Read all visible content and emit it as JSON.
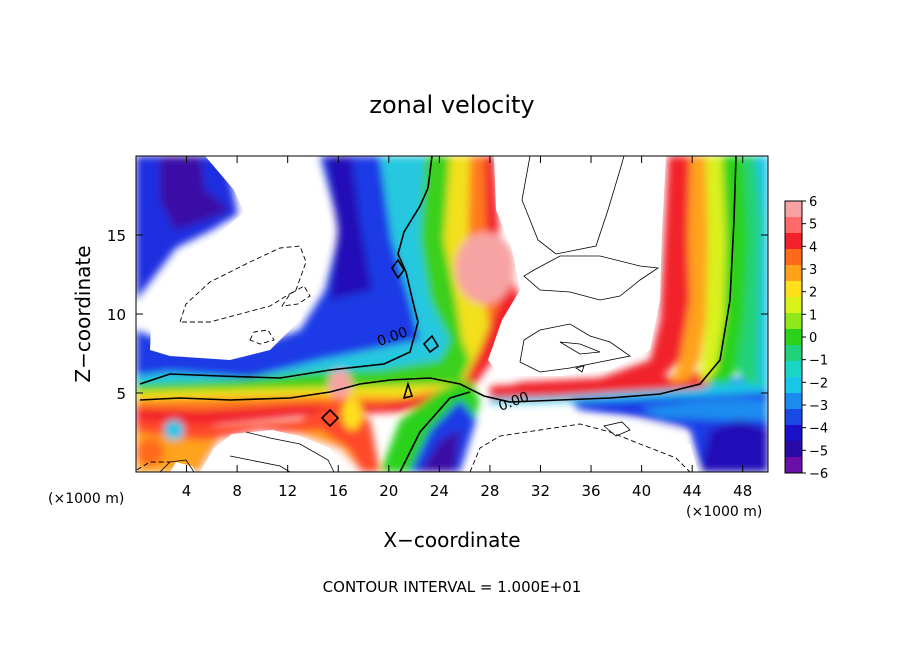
{
  "chart_data": {
    "type": "heatmap",
    "title": "zonal velocity",
    "xlabel": "X−coordinate",
    "ylabel": "Z−coordinate",
    "x_unit_left": "(×1000 m)",
    "x_unit_right": "(×1000 m)",
    "xlim": [
      0,
      50
    ],
    "ylim": [
      0,
      20
    ],
    "x_ticks": [
      4,
      8,
      12,
      16,
      20,
      24,
      28,
      32,
      36,
      40,
      44,
      48
    ],
    "y_ticks": [
      5,
      10,
      15
    ],
    "colorbar": {
      "range": [
        -6,
        6
      ],
      "ticks": [
        "6",
        "5",
        "4",
        "3",
        "2",
        "1",
        "0",
        "−1",
        "−2",
        "−3",
        "−4",
        "−5",
        "−6"
      ],
      "colors": [
        "#f7a3a3",
        "#ff6a6a",
        "#f2202a",
        "#ff6a1a",
        "#ffa21a",
        "#ffe01a",
        "#d9f21a",
        "#8ee81a",
        "#2ad21a",
        "#20d27a",
        "#1ad6c4",
        "#1ac6e8",
        "#1a8cf0",
        "#1a4ae6",
        "#1a10c8",
        "#2a0aa4",
        "#6a10a8"
      ]
    },
    "contour_labels": [
      {
        "text": "0.00",
        "x": 20.4,
        "z": 8.3
      },
      {
        "text": "0.00",
        "x": 30.0,
        "z": 4.2
      }
    ],
    "footer": "CONTOUR INTERVAL = 1.000E+01"
  }
}
